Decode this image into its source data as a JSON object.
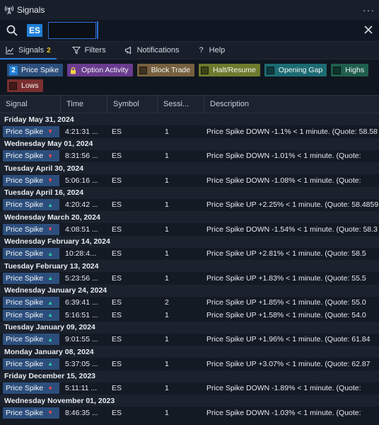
{
  "window": {
    "title": "Signals",
    "menu_icon": "more-icon"
  },
  "search": {
    "symbol": "ES",
    "input_value": ""
  },
  "tabs": [
    {
      "label": "Signals",
      "badge": "2",
      "icon": "chart-icon"
    },
    {
      "label": "Filters",
      "icon": "filter-icon"
    },
    {
      "label": "Notifications",
      "icon": "megaphone-icon"
    },
    {
      "label": "Help",
      "icon": "help-icon"
    }
  ],
  "chips": {
    "price_spike": {
      "label": "Price Spike",
      "count": "2",
      "color": "#2c4e7c"
    },
    "option_activity": {
      "label": "Option Activity",
      "color": "#6a3b8f"
    },
    "block_trade": {
      "label": "Block Trade",
      "color": "#76603f"
    },
    "halt_resume": {
      "label": "Halt/Resume",
      "color": "#6e7a2d"
    },
    "opening_gap": {
      "label": "Opening Gap",
      "color": "#1c6b72"
    },
    "highs": {
      "label": "Highs",
      "color": "#1f5f4c"
    },
    "lows": {
      "label": "Lows",
      "color": "#7a2f2f"
    }
  },
  "columns": {
    "signal": "Signal",
    "time": "Time",
    "symbol": "Symbol",
    "session": "Sessi...",
    "description": "Description"
  },
  "groups": [
    {
      "date": "Friday May 31, 2024",
      "rows": [
        {
          "signal": "Price Spike",
          "dir": "down",
          "time": "4:21:31 ...",
          "symbol": "ES",
          "session": "1",
          "desc": "Price Spike DOWN -1.1% < 1 minute. (Quote: 58.58"
        }
      ]
    },
    {
      "date": "Wednesday May 01, 2024",
      "rows": [
        {
          "signal": "Price Spike",
          "dir": "down",
          "time": "8:31:56 ...",
          "symbol": "ES",
          "session": "1",
          "desc": "Price Spike DOWN -1.01% < 1 minute. (Quote:"
        }
      ]
    },
    {
      "date": "Tuesday April 30, 2024",
      "rows": [
        {
          "signal": "Price Spike",
          "dir": "down",
          "time": "5:06:16 ...",
          "symbol": "ES",
          "session": "1",
          "desc": "Price Spike DOWN -1.08% < 1 minute. (Quote:"
        }
      ]
    },
    {
      "date": "Tuesday April 16, 2024",
      "rows": [
        {
          "signal": "Price Spike",
          "dir": "up",
          "time": "4:20:42 ...",
          "symbol": "ES",
          "session": "1",
          "desc": "Price Spike UP +2.25% < 1 minute. (Quote: 58.4859"
        }
      ]
    },
    {
      "date": "Wednesday March 20, 2024",
      "rows": [
        {
          "signal": "Price Spike",
          "dir": "down",
          "time": "4:08:51 ...",
          "symbol": "ES",
          "session": "1",
          "desc": "Price Spike DOWN -1.54% < 1 minute. (Quote: 58.3"
        }
      ]
    },
    {
      "date": "Wednesday February 14, 2024",
      "rows": [
        {
          "signal": "Price Spike",
          "dir": "up",
          "time": "10:28:4...",
          "symbol": "ES",
          "session": "1",
          "desc": "Price Spike UP +2.81% < 1 minute. (Quote: 58.5"
        }
      ]
    },
    {
      "date": "Tuesday February 13, 2024",
      "rows": [
        {
          "signal": "Price Spike",
          "dir": "up",
          "time": "5:23:56 ...",
          "symbol": "ES",
          "session": "1",
          "desc": "Price Spike UP +1.83% < 1 minute. (Quote: 55.5"
        }
      ]
    },
    {
      "date": "Wednesday January 24, 2024",
      "rows": [
        {
          "signal": "Price Spike",
          "dir": "up",
          "time": "6:39:41 ...",
          "symbol": "ES",
          "session": "2",
          "desc": "Price Spike UP +1.85% < 1 minute. (Quote: 55.0"
        },
        {
          "signal": "Price Spike",
          "dir": "up",
          "time": "5:16:51 ...",
          "symbol": "ES",
          "session": "1",
          "desc": "Price Spike UP +1.58% < 1 minute. (Quote: 54.0"
        }
      ]
    },
    {
      "date": "Tuesday January 09, 2024",
      "rows": [
        {
          "signal": "Price Spike",
          "dir": "up",
          "time": "9:01:55 ...",
          "symbol": "ES",
          "session": "1",
          "desc": "Price Spike UP +1.96% < 1 minute. (Quote: 61.84"
        }
      ]
    },
    {
      "date": "Monday January 08, 2024",
      "rows": [
        {
          "signal": "Price Spike",
          "dir": "up",
          "time": "5:37:05 ...",
          "symbol": "ES",
          "session": "1",
          "desc": "Price Spike UP +3.07% < 1 minute. (Quote: 62.87"
        }
      ]
    },
    {
      "date": "Friday December 15, 2023",
      "rows": [
        {
          "signal": "Price Spike",
          "dir": "down",
          "time": "5:11:11 ...",
          "symbol": "ES",
          "session": "1",
          "desc": "Price Spike DOWN -1.89% < 1 minute. (Quote:"
        }
      ]
    },
    {
      "date": "Wednesday November 01, 2023",
      "rows": [
        {
          "signal": "Price Spike",
          "dir": "down",
          "time": "8:46:35 ...",
          "symbol": "ES",
          "session": "1",
          "desc": "Price Spike DOWN -1.03% < 1 minute. (Quote:"
        }
      ]
    }
  ]
}
